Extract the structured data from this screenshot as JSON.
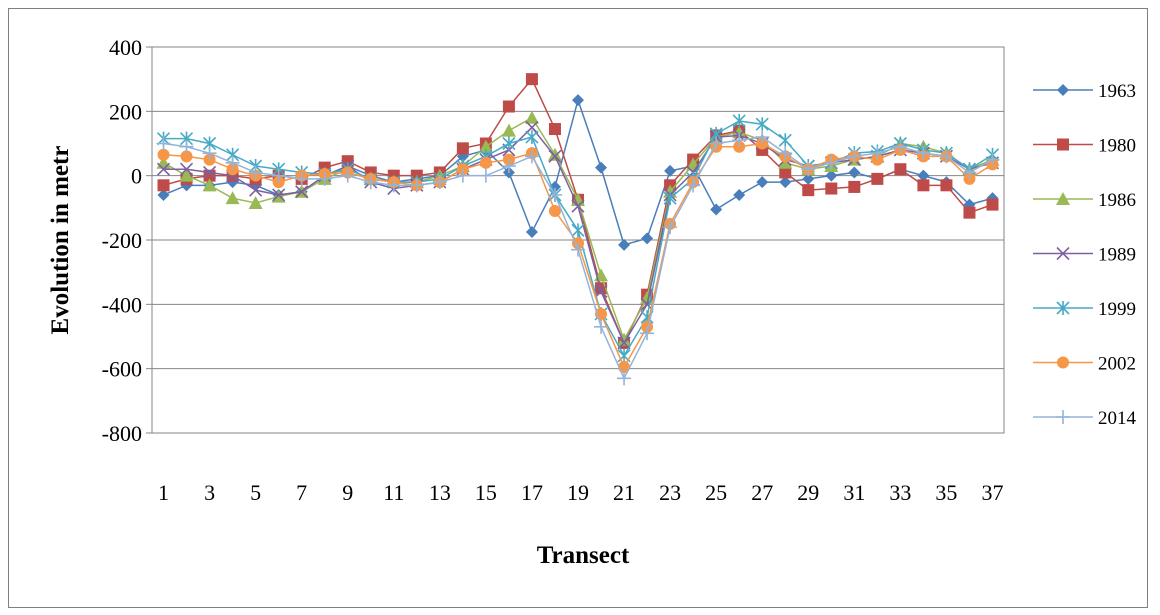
{
  "chart_data": {
    "type": "line",
    "title": "",
    "xlabel": "Transect",
    "ylabel": "Evolution in metr",
    "x": [
      1,
      2,
      3,
      4,
      5,
      6,
      7,
      8,
      9,
      10,
      11,
      12,
      13,
      14,
      15,
      16,
      17,
      18,
      19,
      20,
      21,
      22,
      23,
      24,
      25,
      26,
      27,
      28,
      29,
      30,
      31,
      32,
      33,
      34,
      35,
      36,
      37
    ],
    "x_tick_labels": [
      "1",
      "3",
      "5",
      "7",
      "9",
      "11",
      "13",
      "15",
      "17",
      "19",
      "21",
      "23",
      "25",
      "27",
      "29",
      "31",
      "33",
      "35",
      "37"
    ],
    "x_tick_values": [
      1,
      3,
      5,
      7,
      9,
      11,
      13,
      15,
      17,
      19,
      21,
      23,
      25,
      27,
      29,
      31,
      33,
      35,
      37
    ],
    "ylim": [
      -800,
      400
    ],
    "y_ticks": [
      -800,
      -600,
      -400,
      -200,
      0,
      200,
      400
    ],
    "grid": "horizontal",
    "legend_position": "right",
    "series": [
      {
        "name": "1963",
        "color": "#4a7ebb",
        "marker": "diamond",
        "values": [
          -60,
          -30,
          -30,
          -20,
          -30,
          -60,
          -50,
          0,
          30,
          0,
          -20,
          -10,
          0,
          60,
          80,
          10,
          -175,
          -35,
          235,
          25,
          -215,
          -195,
          15,
          30,
          -105,
          -60,
          -20,
          -20,
          -10,
          0,
          10,
          -10,
          20,
          0,
          -20,
          -90,
          -70
        ]
      },
      {
        "name": "1980",
        "color": "#be4b48",
        "marker": "square",
        "values": [
          -30,
          -10,
          0,
          0,
          -10,
          0,
          -10,
          25,
          45,
          10,
          0,
          0,
          10,
          85,
          100,
          215,
          300,
          145,
          -75,
          -350,
          -520,
          -370,
          -30,
          50,
          125,
          140,
          80,
          10,
          -45,
          -40,
          -35,
          -10,
          20,
          -30,
          -30,
          -115,
          -90
        ]
      },
      {
        "name": "1986",
        "color": "#98b954",
        "marker": "triangle",
        "values": [
          40,
          0,
          -30,
          -70,
          -85,
          -65,
          -50,
          -10,
          20,
          -10,
          -20,
          -20,
          0,
          30,
          90,
          140,
          180,
          65,
          -75,
          -310,
          -510,
          -380,
          -50,
          35,
          120,
          135,
          110,
          40,
          20,
          30,
          50,
          60,
          100,
          90,
          70,
          20,
          50
        ]
      },
      {
        "name": "1989",
        "color": "#7d60a0",
        "marker": "x",
        "values": [
          20,
          20,
          10,
          0,
          -45,
          -60,
          -50,
          0,
          30,
          -20,
          -40,
          -30,
          -20,
          20,
          50,
          80,
          150,
          60,
          -95,
          -360,
          -520,
          -400,
          -60,
          10,
          120,
          125,
          100,
          50,
          30,
          40,
          50,
          60,
          80,
          70,
          60,
          20,
          40
        ]
      },
      {
        "name": "1999",
        "color": "#46aac5",
        "marker": "star",
        "values": [
          115,
          115,
          100,
          65,
          30,
          20,
          10,
          5,
          20,
          -10,
          -20,
          -20,
          -10,
          30,
          60,
          100,
          120,
          -60,
          -170,
          -430,
          -560,
          -440,
          -70,
          -10,
          130,
          170,
          160,
          110,
          30,
          40,
          70,
          75,
          100,
          80,
          70,
          20,
          65
        ]
      },
      {
        "name": "2002",
        "color": "#f79646",
        "marker": "circle",
        "values": [
          65,
          60,
          50,
          20,
          0,
          -20,
          0,
          5,
          10,
          -10,
          -20,
          -30,
          -20,
          20,
          40,
          50,
          70,
          -110,
          -210,
          -430,
          -595,
          -470,
          -150,
          -20,
          90,
          90,
          100,
          60,
          20,
          50,
          60,
          50,
          80,
          60,
          60,
          -10,
          35
        ]
      },
      {
        "name": "2014",
        "color": "#95b3d7",
        "marker": "plus",
        "values": [
          100,
          90,
          70,
          40,
          10,
          0,
          -10,
          -10,
          0,
          -20,
          -30,
          -30,
          -20,
          0,
          0,
          30,
          60,
          -60,
          -230,
          -470,
          -630,
          -490,
          -160,
          -30,
          100,
          110,
          120,
          70,
          20,
          40,
          60,
          70,
          90,
          70,
          60,
          10,
          50
        ]
      }
    ]
  }
}
